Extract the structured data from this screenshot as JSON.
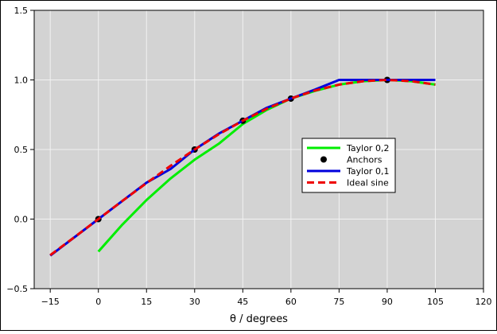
{
  "chart_data": {
    "type": "line",
    "title": "",
    "xlabel": "θ / degrees",
    "ylabel": "",
    "xlim": [
      -20,
      120
    ],
    "ylim": [
      -0.5,
      1.5
    ],
    "xticks": [
      -15,
      0,
      15,
      30,
      45,
      60,
      75,
      90,
      105,
      120
    ],
    "xtick_labels": [
      "−15",
      "0",
      "15",
      "30",
      "45",
      "60",
      "75",
      "90",
      "105",
      "120"
    ],
    "yticks": [
      -0.5,
      0.0,
      0.5,
      1.0,
      1.5
    ],
    "ytick_labels": [
      "−0.5",
      "0.0",
      "0.5",
      "1.0",
      "1.5"
    ],
    "grid": true,
    "background": "#d3d3d3",
    "legend_position": "center-right",
    "series": [
      {
        "name": "Taylor 0,2",
        "color": "#00ee00",
        "style": "solid",
        "x": [
          0,
          7.5,
          15,
          22.5,
          30,
          37.5,
          45,
          52.5,
          60,
          67.5,
          75,
          82.5,
          90,
          97.5,
          105
        ],
        "y": [
          -0.234,
          -0.039,
          0.137,
          0.292,
          0.427,
          0.541,
          0.683,
          0.785,
          0.866,
          0.921,
          0.966,
          0.991,
          1.0,
          0.991,
          0.966
        ]
      },
      {
        "name": "Anchors",
        "color": "#000000",
        "style": "markers",
        "x": [
          0,
          30,
          45,
          60,
          90
        ],
        "y": [
          0.0,
          0.5,
          0.707,
          0.866,
          1.0
        ]
      },
      {
        "name": "Taylor 0,1",
        "color": "#0000dd",
        "style": "solid",
        "x": [
          -15,
          0,
          15,
          22.5,
          30,
          37.5,
          45,
          52.5,
          60,
          67.5,
          75,
          90,
          105
        ],
        "y": [
          -0.262,
          0.0,
          0.262,
          0.36,
          0.5,
          0.614,
          0.707,
          0.8,
          0.866,
          0.93,
          1.0,
          1.0,
          1.0
        ]
      },
      {
        "name": "Ideal sine",
        "color": "#ee0000",
        "style": "dashed",
        "x": [
          -15,
          -7.5,
          0,
          7.5,
          15,
          22.5,
          30,
          37.5,
          45,
          52.5,
          60,
          67.5,
          75,
          82.5,
          90,
          97.5,
          105
        ],
        "y": [
          -0.259,
          -0.131,
          0.0,
          0.131,
          0.259,
          0.383,
          0.5,
          0.609,
          0.707,
          0.793,
          0.866,
          0.924,
          0.966,
          0.991,
          1.0,
          0.991,
          0.966
        ]
      }
    ]
  }
}
